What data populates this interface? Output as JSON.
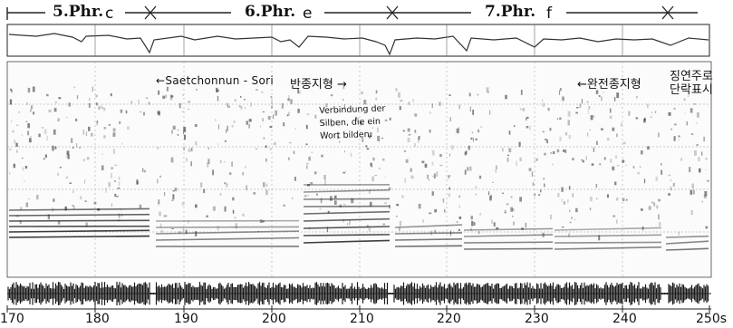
{
  "phrases": [
    {
      "label": "5.Phr.",
      "key": "c"
    },
    {
      "label": "6.Phr.",
      "key": "e"
    },
    {
      "label": "7.Phr.",
      "key": "f"
    }
  ],
  "annotations": {
    "saetchonnun": "←Saetchonnun - Sori",
    "banjong": "반종지형 →",
    "note_line1": "Verbindung der",
    "note_line2": "Silben, die ein",
    "note_line3": "Wort bilden.",
    "wanjeon": "←완전종지형",
    "jingyeon_line1": "징연주로",
    "jingyeon_line2": "단락표시"
  },
  "time_axis": {
    "ticks": [
      "170",
      "180",
      "190",
      "200",
      "210",
      "220",
      "230",
      "240",
      "250s"
    ]
  }
}
